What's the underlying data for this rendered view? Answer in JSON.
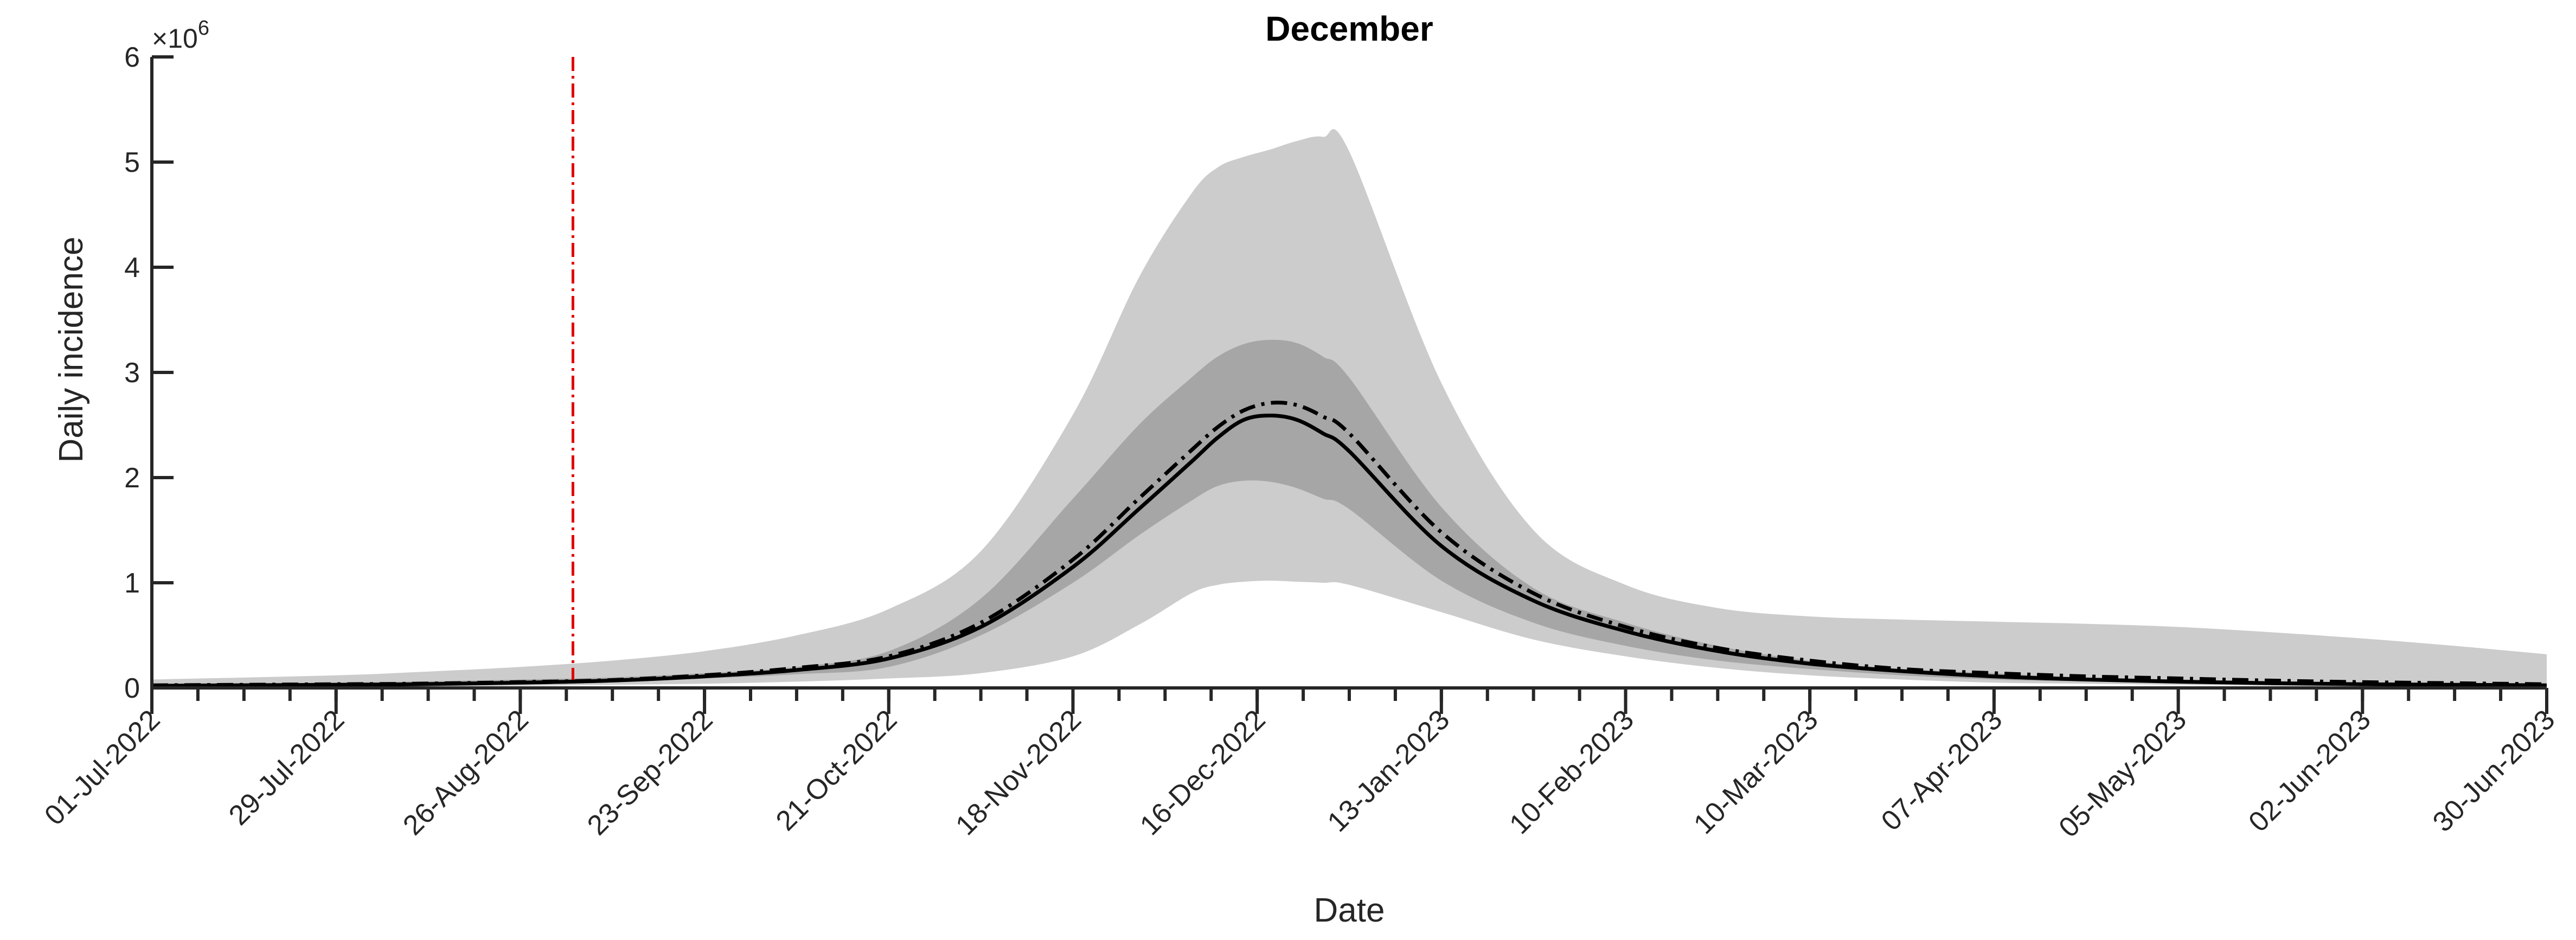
{
  "chart_data": {
    "type": "area",
    "title": "December",
    "xlabel": "Date",
    "ylabel": "Daily incidence",
    "y_exponent_label": "×10",
    "y_exponent_power": "6",
    "y_scale": 1000000,
    "x_start": "01-Jul-2022",
    "x_end": "30-Jun-2023",
    "xlim_days": [
      0,
      364
    ],
    "ylim": [
      0,
      6
    ],
    "yticks": [
      {
        "value": 0,
        "label": "0"
      },
      {
        "value": 1,
        "label": "1"
      },
      {
        "value": 2,
        "label": "2"
      },
      {
        "value": 3,
        "label": "3"
      },
      {
        "value": 4,
        "label": "4"
      },
      {
        "value": 5,
        "label": "5"
      },
      {
        "value": 6,
        "label": "6"
      }
    ],
    "xticks": [
      {
        "day": 0,
        "label": "01-Jul-2022"
      },
      {
        "day": 28,
        "label": "29-Jul-2022"
      },
      {
        "day": 56,
        "label": "26-Aug-2022"
      },
      {
        "day": 84,
        "label": "23-Sep-2022"
      },
      {
        "day": 112,
        "label": "21-Oct-2022"
      },
      {
        "day": 140,
        "label": "18-Nov-2022"
      },
      {
        "day": 168,
        "label": "16-Dec-2022"
      },
      {
        "day": 196,
        "label": "13-Jan-2023"
      },
      {
        "day": 224,
        "label": "10-Feb-2023"
      },
      {
        "day": 252,
        "label": "10-Mar-2023"
      },
      {
        "day": 280,
        "label": "07-Apr-2023"
      },
      {
        "day": 308,
        "label": "05-May-2023"
      },
      {
        "day": 336,
        "label": "02-Jun-2023"
      },
      {
        "day": 364,
        "label": "30-Jun-2023"
      }
    ],
    "x_day": [
      0,
      28,
      40,
      56,
      70,
      84,
      98,
      112,
      126,
      140,
      150,
      158,
      162,
      166,
      170,
      174,
      178,
      182,
      196,
      210,
      224,
      238,
      252,
      266,
      280,
      294,
      308,
      322,
      336,
      350,
      364
    ],
    "bands": [
      {
        "role": "outer",
        "color": "#cccccc",
        "lower": [
          0.01,
          0.012,
          0.015,
          0.02,
          0.03,
          0.04,
          0.06,
          0.09,
          0.14,
          0.3,
          0.6,
          0.9,
          0.98,
          1.01,
          1.02,
          1.01,
          1.0,
          0.98,
          0.72,
          0.46,
          0.3,
          0.19,
          0.12,
          0.08,
          0.05,
          0.04,
          0.03,
          0.02,
          0.015,
          0.01,
          0.01
        ],
        "upper": [
          0.08,
          0.12,
          0.15,
          0.2,
          0.26,
          0.35,
          0.5,
          0.75,
          1.3,
          2.6,
          3.9,
          4.7,
          4.95,
          5.05,
          5.12,
          5.2,
          5.24,
          5.1,
          2.9,
          1.5,
          0.98,
          0.76,
          0.68,
          0.65,
          0.63,
          0.61,
          0.58,
          0.53,
          0.47,
          0.4,
          0.32
        ]
      },
      {
        "role": "inner",
        "color": "#a6a6a6",
        "lower": [
          0.02,
          0.03,
          0.035,
          0.045,
          0.06,
          0.09,
          0.13,
          0.2,
          0.5,
          1.0,
          1.45,
          1.78,
          1.92,
          1.97,
          1.96,
          1.9,
          1.8,
          1.7,
          1.02,
          0.62,
          0.4,
          0.26,
          0.18,
          0.12,
          0.08,
          0.06,
          0.05,
          0.035,
          0.025,
          0.02,
          0.015
        ],
        "upper": [
          0.04,
          0.05,
          0.06,
          0.08,
          0.1,
          0.14,
          0.2,
          0.35,
          0.85,
          1.8,
          2.5,
          2.95,
          3.15,
          3.27,
          3.31,
          3.28,
          3.15,
          2.95,
          1.72,
          0.95,
          0.62,
          0.4,
          0.26,
          0.18,
          0.14,
          0.1,
          0.08,
          0.06,
          0.045,
          0.035,
          0.03
        ]
      }
    ],
    "series": [
      {
        "style": "solid",
        "color": "#000000",
        "values": [
          0.02,
          0.03,
          0.035,
          0.05,
          0.07,
          0.11,
          0.17,
          0.28,
          0.58,
          1.15,
          1.7,
          2.15,
          2.38,
          2.55,
          2.59,
          2.55,
          2.42,
          2.25,
          1.35,
          0.83,
          0.54,
          0.35,
          0.23,
          0.16,
          0.11,
          0.08,
          0.06,
          0.045,
          0.035,
          0.03,
          0.025
        ]
      },
      {
        "style": "dash-dot",
        "color": "#000000",
        "values": [
          0.025,
          0.035,
          0.04,
          0.055,
          0.075,
          0.12,
          0.19,
          0.3,
          0.62,
          1.22,
          1.8,
          2.26,
          2.48,
          2.64,
          2.71,
          2.69,
          2.58,
          2.42,
          1.48,
          0.9,
          0.58,
          0.38,
          0.26,
          0.18,
          0.14,
          0.11,
          0.09,
          0.07,
          0.055,
          0.045,
          0.035
        ]
      }
    ],
    "vline": {
      "day": 64,
      "color": "#e00000",
      "style": "dash-dot"
    }
  }
}
